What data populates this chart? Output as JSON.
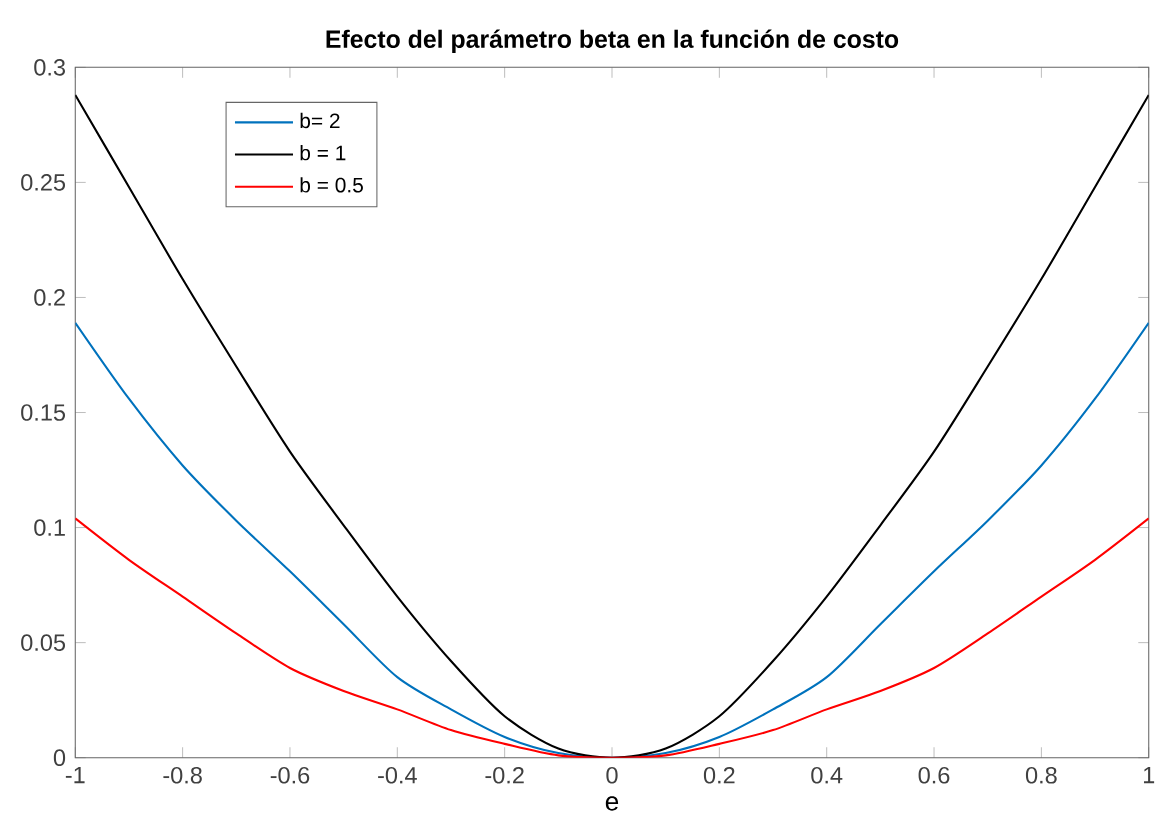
{
  "chart_data": {
    "type": "line",
    "title": "Efecto del parámetro beta en la función de costo",
    "xlabel": "e",
    "x": [
      -1,
      -0.9,
      -0.8,
      -0.7,
      -0.6,
      -0.5,
      -0.4,
      -0.3,
      -0.2,
      -0.1,
      0,
      0.1,
      0.2,
      0.3,
      0.4,
      0.5,
      0.6,
      0.7,
      0.8,
      0.9,
      1
    ],
    "series": [
      {
        "name": "b= 2",
        "color": "#0072bd",
        "values": [
          0.189,
          0.156,
          0.127,
          0.103,
          0.081,
          0.058,
          0.035,
          0.021,
          0.009,
          0.002,
          0,
          0.002,
          0.009,
          0.021,
          0.035,
          0.058,
          0.081,
          0.103,
          0.127,
          0.156,
          0.189
        ]
      },
      {
        "name": "b = 1",
        "color": "#000000",
        "values": [
          0.288,
          0.248,
          0.208,
          0.17,
          0.133,
          0.101,
          0.07,
          0.042,
          0.018,
          0.004,
          0,
          0.004,
          0.018,
          0.042,
          0.07,
          0.101,
          0.133,
          0.17,
          0.208,
          0.248,
          0.288
        ]
      },
      {
        "name": "b = 0.5",
        "color": "#ff0000",
        "values": [
          0.104,
          0.086,
          0.07,
          0.054,
          0.039,
          0.029,
          0.021,
          0.012,
          0.006,
          0.001,
          0,
          0.001,
          0.006,
          0.012,
          0.021,
          0.029,
          0.039,
          0.054,
          0.07,
          0.086,
          0.104
        ]
      }
    ],
    "xlim": [
      -1,
      1
    ],
    "ylim": [
      0,
      0.3
    ],
    "xticks": [
      -1,
      -0.8,
      -0.6,
      -0.4,
      -0.2,
      0,
      0.2,
      0.4,
      0.6,
      0.8,
      1
    ],
    "yticks": [
      0,
      0.05,
      0.1,
      0.15,
      0.2,
      0.25,
      0.3
    ],
    "legend": "top left",
    "grid": false,
    "marker": "none",
    "line_style": "solid"
  }
}
